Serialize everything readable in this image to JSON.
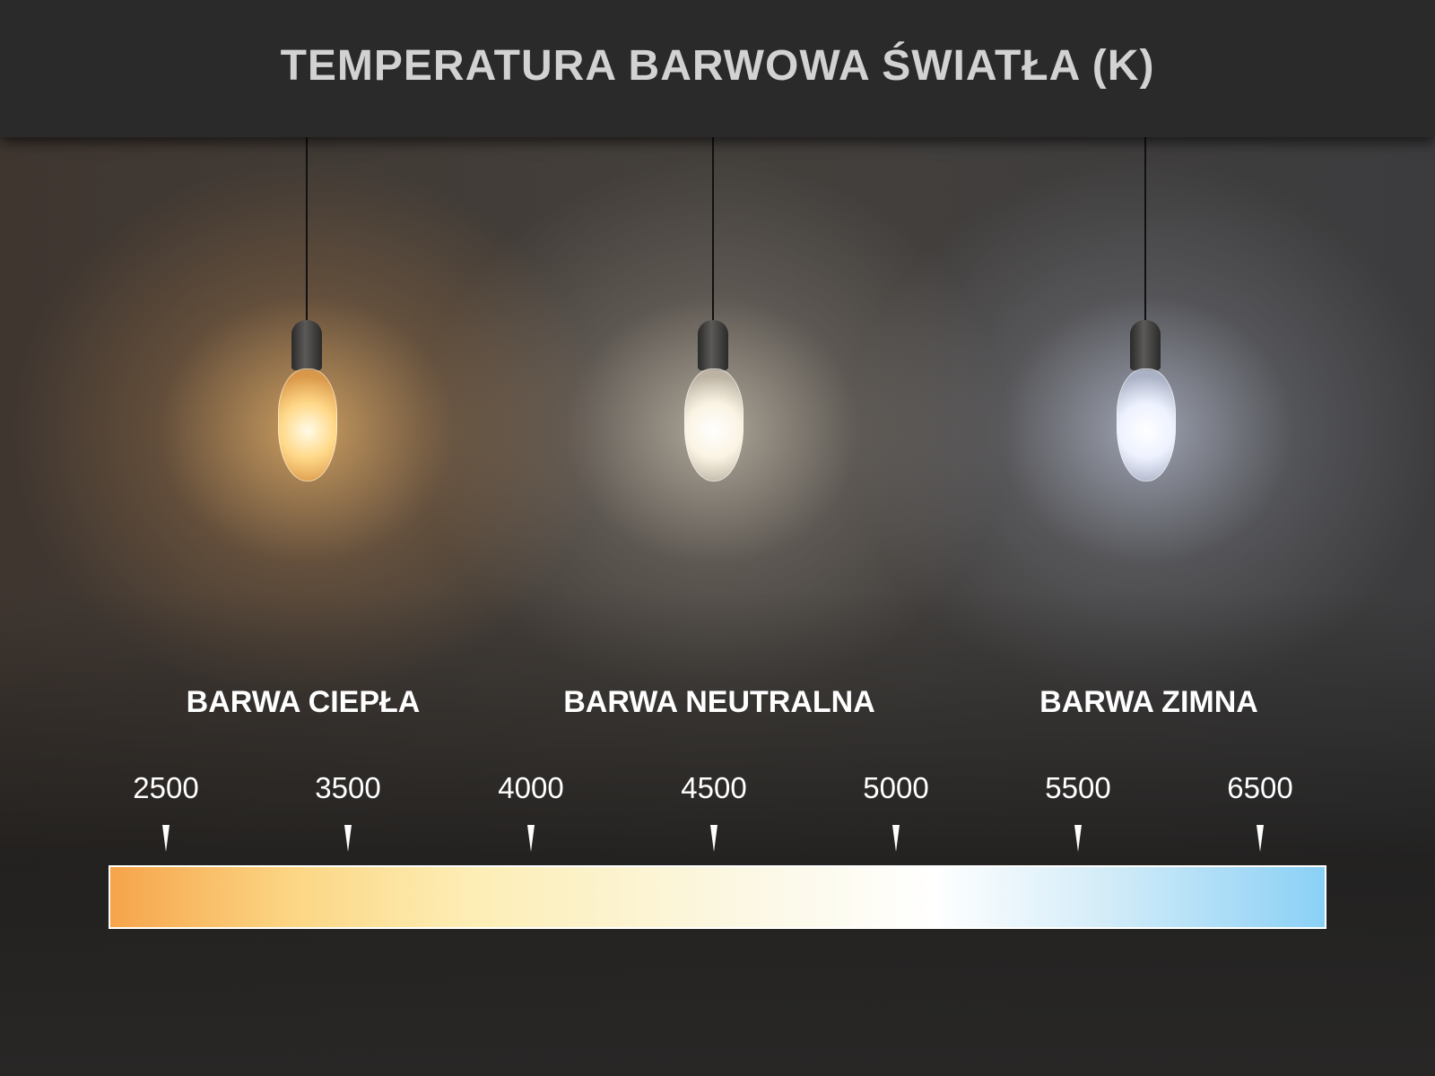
{
  "title": "TEMPERATURA BARWOWA ŚWIATŁA (K)",
  "categories": [
    {
      "label": "BARWA CIEPŁA",
      "color": "#f9c27c"
    },
    {
      "label": "BARWA NEUTRALNA",
      "color": "#f6efe0"
    },
    {
      "label": "BARWA ZIMNA",
      "color": "#e2eaff"
    }
  ],
  "scale": {
    "ticks": [
      "2500",
      "3500",
      "4000",
      "4500",
      "5000",
      "5500",
      "6500"
    ],
    "gradient_colors": [
      "#f6a44a",
      "#fcd684",
      "#fbf7df",
      "#ffffff",
      "#8ad0f6"
    ]
  }
}
